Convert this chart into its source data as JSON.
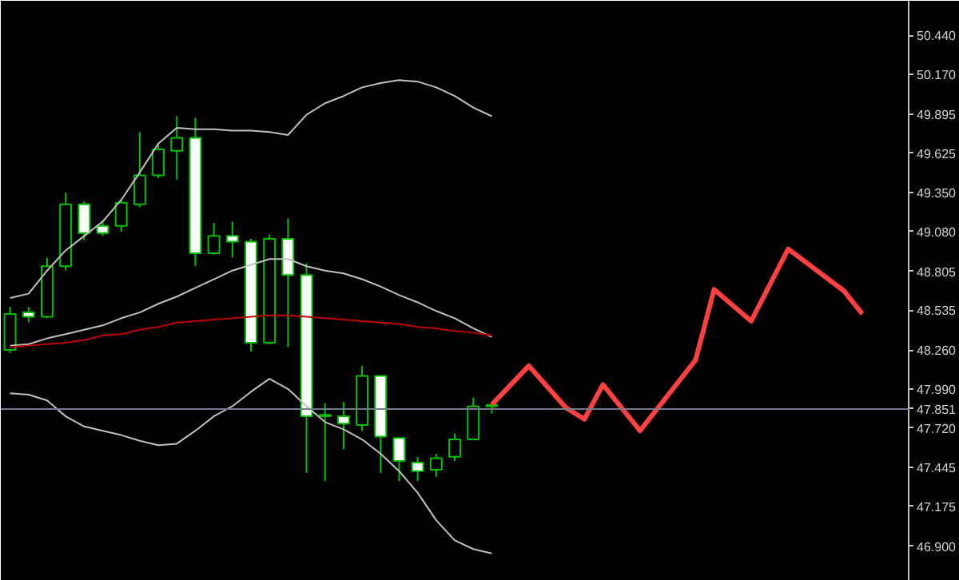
{
  "chart_data": {
    "type": "candlestick",
    "categories": [
      null,
      null,
      null,
      null,
      null,
      null,
      null,
      null,
      null,
      null,
      null,
      null,
      null,
      null,
      null,
      null,
      null,
      null,
      null,
      null,
      null,
      null,
      null,
      null,
      null,
      null,
      null,
      null,
      null,
      null,
      null,
      null,
      null,
      null,
      null,
      null,
      null,
      null,
      null,
      null,
      null,
      null,
      null,
      null,
      null,
      null,
      null,
      null,
      null
    ],
    "ylim": [
      46.66,
      50.68
    ],
    "yticks": [
      {
        "value": 50.44,
        "label": "50.440"
      },
      {
        "value": 50.17,
        "label": "50.170"
      },
      {
        "value": 49.895,
        "label": "49.895"
      },
      {
        "value": 49.625,
        "label": "49.625"
      },
      {
        "value": 49.35,
        "label": "49.350"
      },
      {
        "value": 49.08,
        "label": "49.080"
      },
      {
        "value": 48.805,
        "label": "48.805"
      },
      {
        "value": 48.535,
        "label": "48.535"
      },
      {
        "value": 48.26,
        "label": "48.260"
      },
      {
        "value": 47.99,
        "label": "47.990"
      },
      {
        "value": 47.72,
        "label": "47.720"
      },
      {
        "value": 47.445,
        "label": "47.445"
      },
      {
        "value": 47.175,
        "label": "47.175"
      },
      {
        "value": 46.9,
        "label": "46.900"
      }
    ],
    "tick_labels": "y",
    "grid": false,
    "ohlc": [
      [
        48.26,
        48.56,
        48.24,
        48.51
      ],
      [
        48.52,
        48.56,
        48.45,
        48.49
      ],
      [
        48.49,
        48.9,
        48.48,
        48.84
      ],
      [
        48.84,
        49.35,
        48.81,
        49.27
      ],
      [
        49.27,
        49.29,
        49.02,
        49.07
      ],
      [
        49.12,
        49.16,
        49.05,
        49.07
      ],
      [
        49.12,
        49.3,
        49.08,
        49.28
      ],
      [
        49.27,
        49.77,
        49.25,
        49.47
      ],
      [
        49.47,
        49.69,
        49.45,
        49.65
      ],
      [
        49.64,
        49.88,
        49.44,
        49.73
      ],
      [
        49.73,
        49.87,
        48.84,
        48.93
      ],
      [
        48.93,
        49.14,
        48.92,
        49.05
      ],
      [
        49.05,
        49.15,
        48.9,
        49.01
      ],
      [
        49.01,
        49.03,
        48.25,
        48.31
      ],
      [
        48.31,
        49.06,
        48.3,
        49.03
      ],
      [
        49.03,
        49.17,
        48.28,
        48.78
      ],
      [
        48.78,
        48.86,
        47.41,
        47.8
      ],
      [
        47.8,
        47.89,
        47.35,
        47.81
      ],
      [
        47.8,
        47.9,
        47.57,
        47.75
      ],
      [
        47.74,
        48.15,
        47.7,
        48.08
      ],
      [
        48.08,
        48.08,
        47.41,
        47.66
      ],
      [
        47.65,
        47.65,
        47.35,
        47.49
      ],
      [
        47.48,
        47.52,
        47.35,
        47.42
      ],
      [
        47.43,
        47.54,
        47.38,
        47.51
      ],
      [
        47.52,
        47.68,
        47.49,
        47.64
      ],
      [
        47.64,
        47.93,
        47.64,
        47.87
      ],
      [
        47.87,
        47.87,
        47.82,
        47.87
      ],
      null,
      null,
      null,
      null,
      null,
      null,
      null,
      null,
      null,
      null,
      null,
      null,
      null,
      null,
      null,
      null,
      null,
      null,
      null,
      null,
      null,
      null
    ],
    "colors": [
      "#000000",
      "#ffffff",
      "#000000",
      "#000000",
      "#ffffff",
      "#ffffff",
      "#000000",
      "#000000",
      "#000000",
      "#000000",
      "#ffffff",
      "#000000",
      "#ffffff",
      "#ffffff",
      "#000000",
      "#ffffff",
      "#ffffff",
      "#000000",
      "#ffffff",
      "#000000",
      "#ffffff",
      "#ffffff",
      "#ffffff",
      "#000000",
      "#000000",
      "#000000",
      "#000000",
      null,
      null,
      null,
      null,
      null,
      null,
      null,
      null,
      null,
      null,
      null,
      null,
      null,
      null,
      null,
      null,
      null,
      null,
      null,
      null,
      null,
      null
    ],
    "color": "#00c000",
    "series": [
      {
        "type": "line",
        "color": "#c0c0c0",
        "values": [
          48.62,
          48.65,
          48.81,
          48.95,
          49.05,
          49.15,
          49.3,
          49.49,
          49.69,
          49.8,
          49.79,
          49.79,
          49.78,
          49.78,
          49.77,
          49.75,
          49.89,
          49.97,
          50.02,
          50.08,
          50.11,
          50.13,
          50.12,
          50.08,
          50.02,
          49.94,
          49.88,
          null,
          null,
          null,
          null,
          null,
          null,
          null,
          null,
          null,
          null,
          null,
          null,
          null,
          null,
          null,
          null,
          null,
          null,
          null,
          null,
          null,
          null
        ]
      },
      {
        "type": "line",
        "color": "#c0c0c0",
        "values": [
          48.29,
          48.3,
          48.34,
          48.37,
          48.4,
          48.43,
          48.48,
          48.52,
          48.58,
          48.63,
          48.69,
          48.75,
          48.81,
          48.85,
          48.89,
          48.89,
          48.84,
          48.81,
          48.79,
          48.75,
          48.7,
          48.64,
          48.59,
          48.53,
          48.48,
          48.41,
          48.35,
          null,
          null,
          null,
          null,
          null,
          null,
          null,
          null,
          null,
          null,
          null,
          null,
          null,
          null,
          null,
          null,
          null,
          null,
          null,
          null,
          null,
          null
        ]
      },
      {
        "type": "line",
        "color": "#c0c0c0",
        "values": [
          47.96,
          47.95,
          47.91,
          47.8,
          47.73,
          47.7,
          47.67,
          47.63,
          47.6,
          47.61,
          47.7,
          47.8,
          47.87,
          47.97,
          48.06,
          47.99,
          47.87,
          47.76,
          47.71,
          47.64,
          47.54,
          47.42,
          47.27,
          47.08,
          46.94,
          46.88,
          46.85,
          null,
          null,
          null,
          null,
          null,
          null,
          null,
          null,
          null,
          null,
          null,
          null,
          null,
          null,
          null,
          null,
          null,
          null,
          null,
          null,
          null,
          null
        ]
      },
      {
        "type": "line",
        "color": "#c00000",
        "values": [
          48.28,
          48.29,
          48.3,
          48.31,
          48.33,
          48.36,
          48.37,
          48.4,
          48.42,
          48.45,
          48.46,
          48.47,
          48.48,
          48.49,
          48.5,
          48.5,
          48.49,
          48.48,
          48.47,
          48.46,
          48.45,
          48.44,
          48.42,
          48.41,
          48.39,
          48.38,
          48.36,
          null,
          null,
          null,
          null,
          null,
          null,
          null,
          null,
          null,
          null,
          null,
          null,
          null,
          null,
          null,
          null,
          null,
          null,
          null,
          null,
          null,
          null
        ]
      },
      {
        "type": "line",
        "color": "#ff4040",
        "values": [
          null,
          null,
          null,
          null,
          null,
          null,
          null,
          null,
          null,
          null,
          null,
          null,
          null,
          null,
          null,
          null,
          null,
          null,
          null,
          null,
          null,
          null,
          null,
          null,
          null,
          null,
          47.88,
          null,
          48.15,
          null,
          47.86,
          47.78,
          48.02,
          null,
          47.7,
          null,
          null,
          48.19,
          48.68,
          null,
          48.46,
          null,
          48.96,
          null,
          null,
          48.67,
          48.51,
          null,
          null
        ]
      }
    ],
    "ref_lines": [
      {
        "axis": "y",
        "value": 47.851,
        "label": "47.851",
        "color": "#707c90",
        "line_style": "solid"
      }
    ]
  }
}
